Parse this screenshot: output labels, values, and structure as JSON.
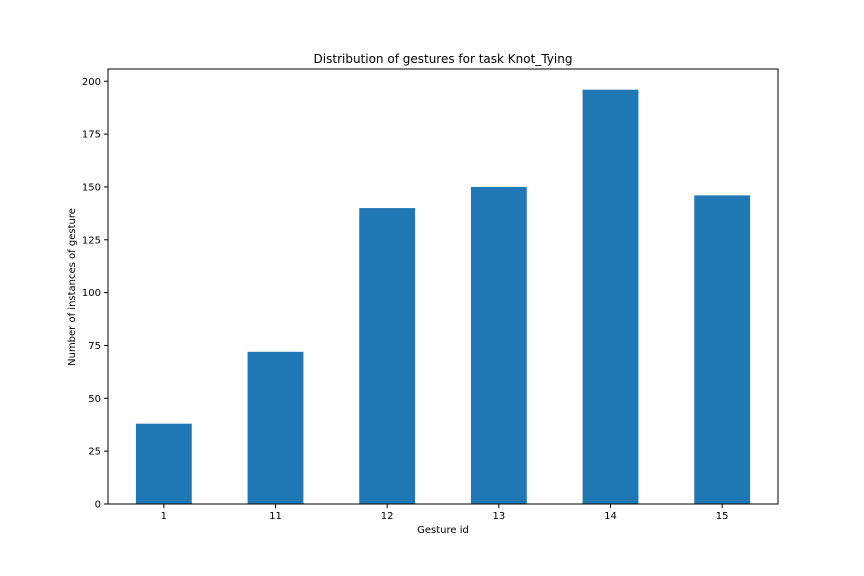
{
  "chart_data": {
    "type": "bar",
    "title": "Distribution of gestures for task Knot_Tying",
    "xlabel": "Gesture id",
    "ylabel": "Number of instances of gesture",
    "categories": [
      "1",
      "11",
      "12",
      "13",
      "14",
      "15"
    ],
    "values": [
      38,
      72,
      140,
      150,
      196,
      146
    ],
    "ylim": [
      0,
      205.8
    ],
    "yticks": [
      0,
      25,
      50,
      75,
      100,
      125,
      150,
      175,
      200
    ],
    "bar_color": "#1f77b4",
    "grid": false,
    "legend": "none"
  }
}
